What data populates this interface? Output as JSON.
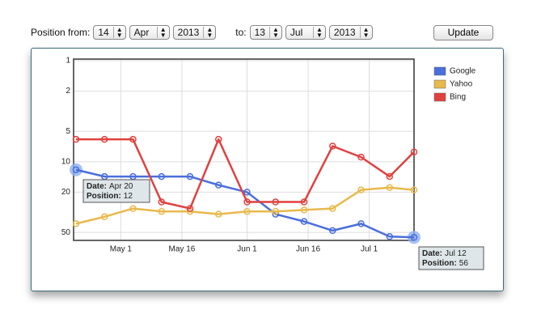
{
  "controls": {
    "from_label": "Position from:",
    "from_day": "14",
    "from_month": "Apr",
    "from_year": "2013",
    "to_label": "to:",
    "to_day": "13",
    "to_month": "Jul",
    "to_year": "2013",
    "button": "Update"
  },
  "chart_data": {
    "type": "line",
    "log_scale": true,
    "y_reversed": true,
    "grid": true,
    "legend": "right",
    "x": [
      "Apr 20",
      "Apr 27",
      "May 4",
      "May 11",
      "May 18",
      "May 25",
      "Jun 1",
      "Jun 8",
      "Jun 15",
      "Jun 22",
      "Jun 29",
      "Jul 6",
      "Jul 12"
    ],
    "xlim": [
      "Apr 20",
      "Jul 12"
    ],
    "xticks": [
      "May 1",
      "May 16",
      "Jun 1",
      "Jun 16",
      "Jul 1"
    ],
    "ylim": [
      1,
      60
    ],
    "yticks": [
      1,
      2,
      5,
      10,
      20,
      50
    ],
    "series": [
      {
        "name": "Google",
        "color": "#4a6fdc",
        "values": [
          12,
          14,
          14,
          14,
          14,
          17,
          20,
          33,
          39,
          48,
          41,
          55,
          56
        ]
      },
      {
        "name": "Yahoo",
        "color": "#e8b94c",
        "values": [
          41,
          35,
          29,
          31,
          31,
          33,
          31,
          31,
          30,
          29,
          19,
          18,
          19
        ]
      },
      {
        "name": "Bing",
        "color": "#e0413f",
        "values": [
          6,
          6,
          6,
          25,
          29,
          6,
          25,
          25,
          25,
          7,
          9,
          14,
          8
        ]
      }
    ],
    "annotations": [
      {
        "date_label": "Date:",
        "date": "Apr 20",
        "position_label": "Position:",
        "position": 12
      },
      {
        "date_label": "Date:",
        "date": "Jul 12",
        "position_label": "Position:",
        "position": 56
      }
    ]
  }
}
